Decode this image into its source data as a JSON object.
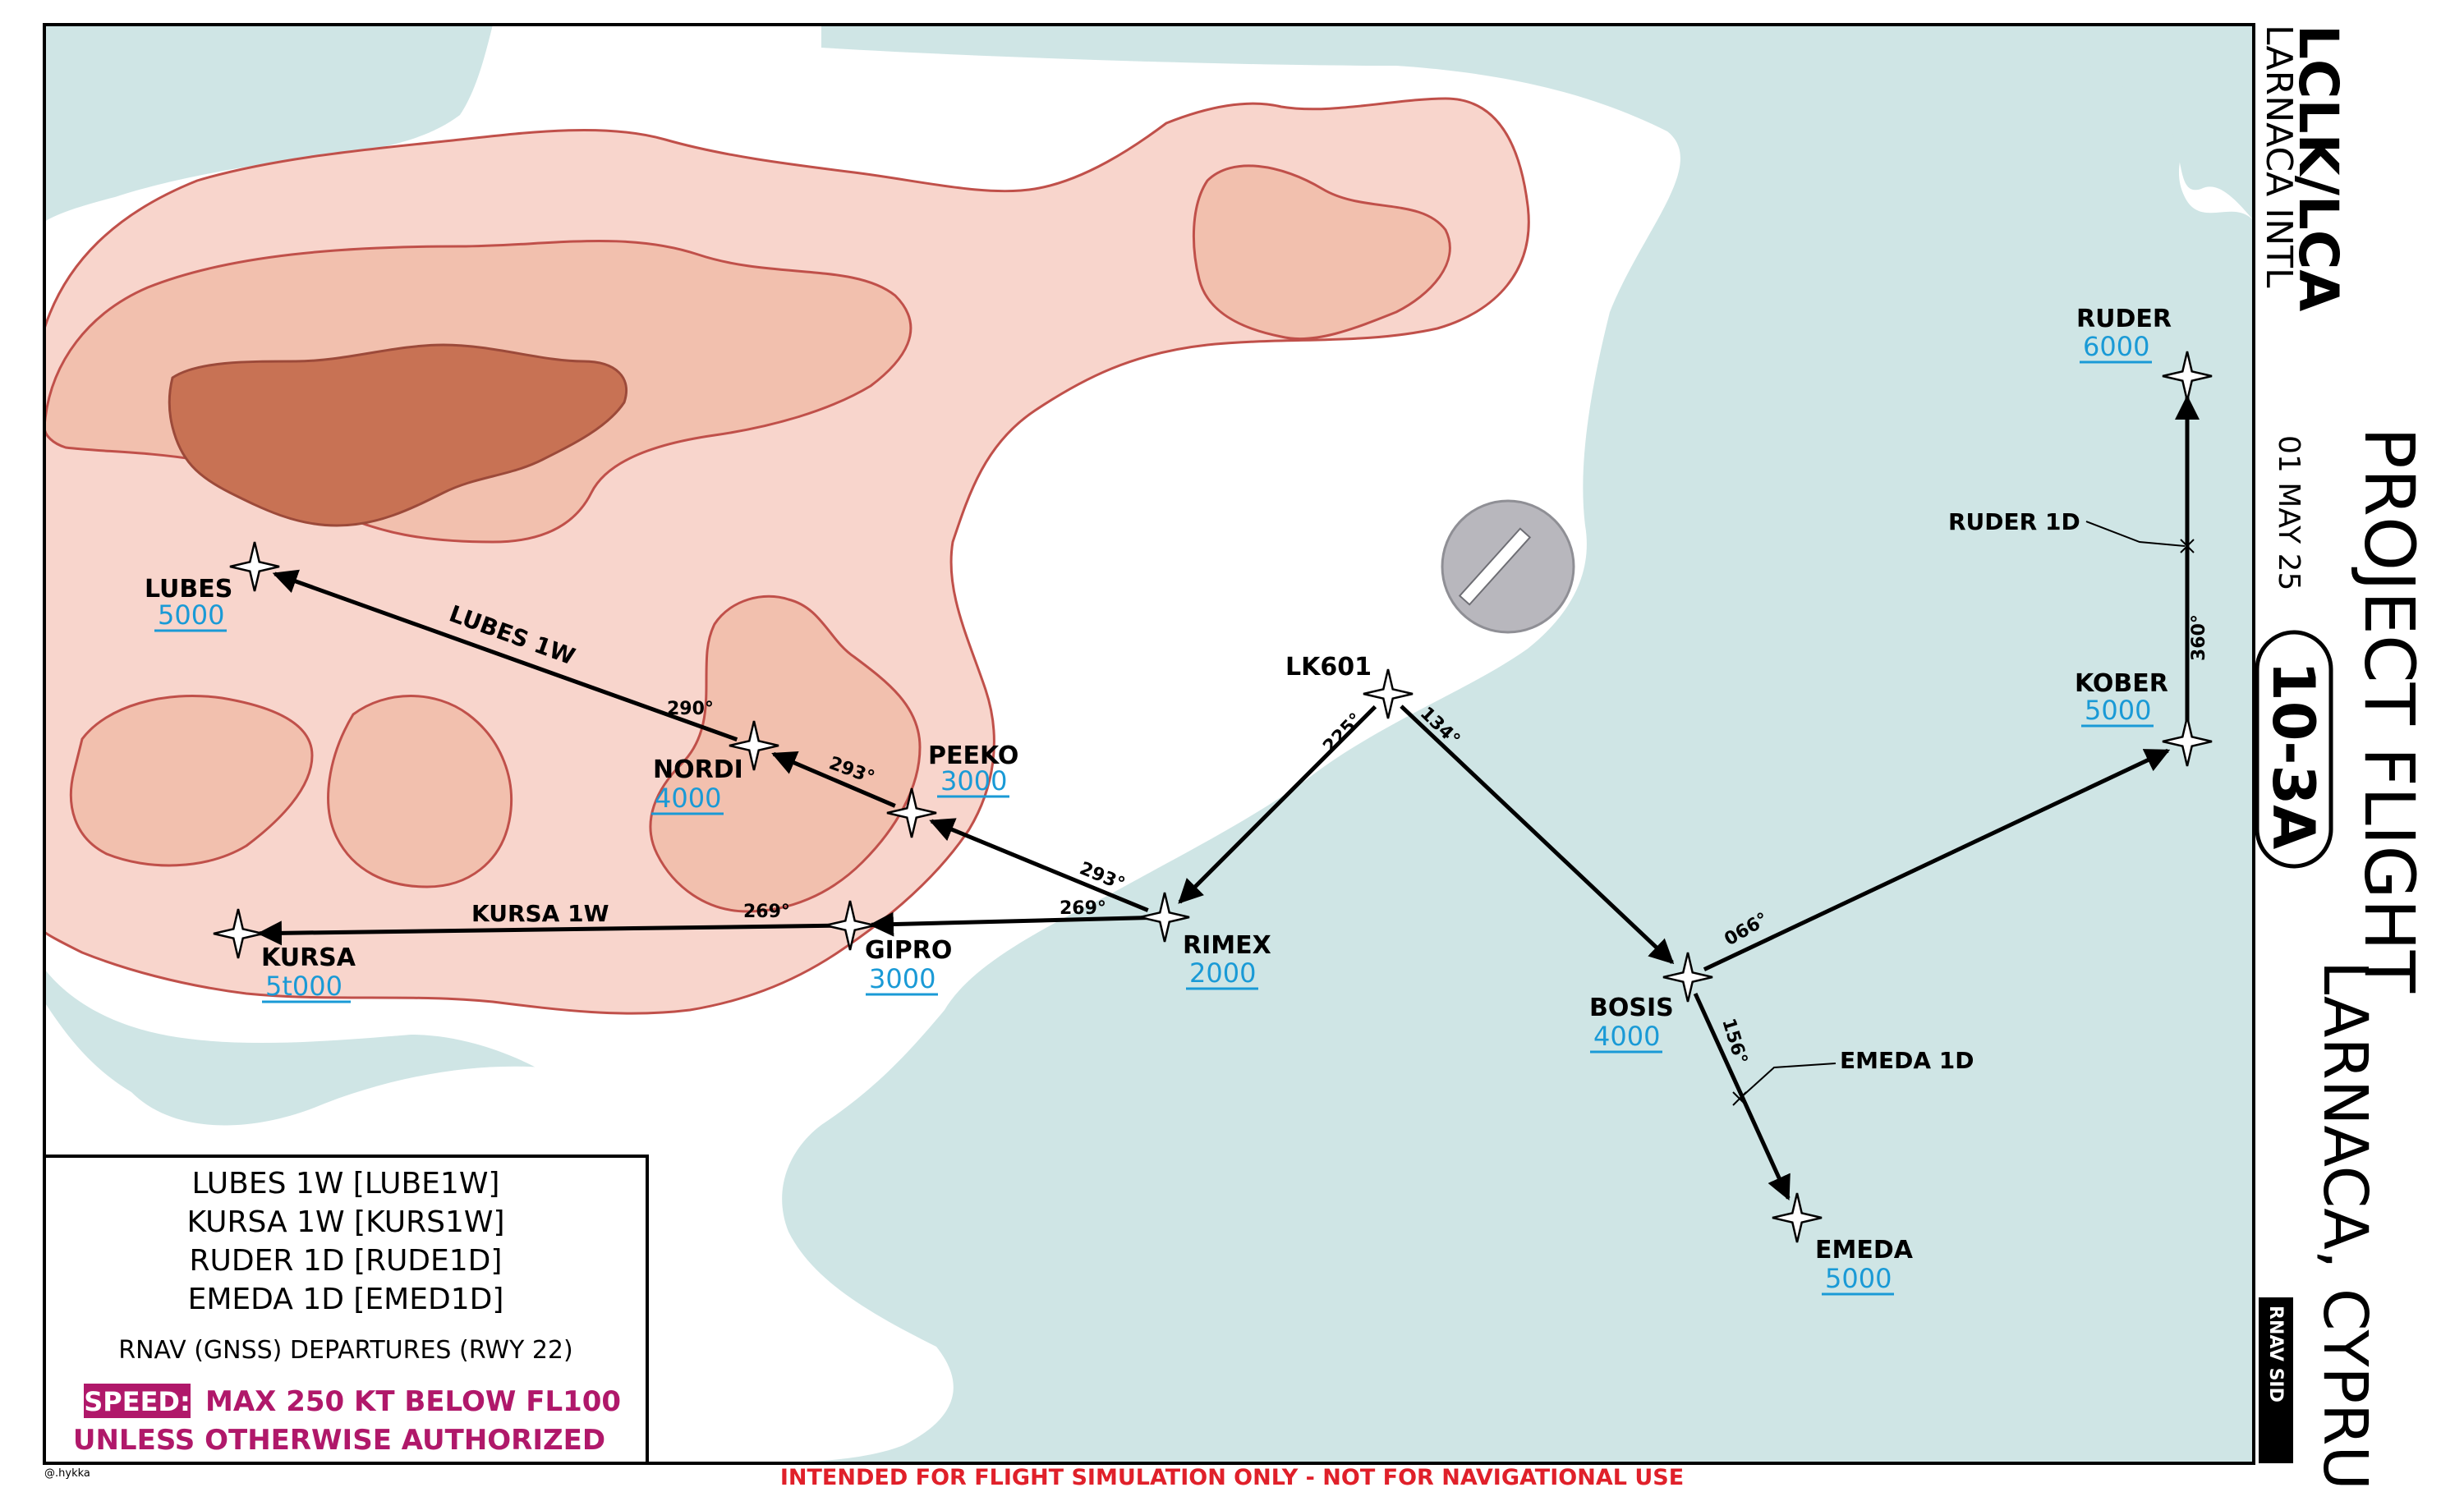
{
  "header": {
    "icao_iata": "LCLK/LCA",
    "airport_name": "LARNACA INTL",
    "title": "PROJECT FLIGHT",
    "city": "LARNACA, CYPRUS",
    "date": "01 MAY 25",
    "chart_number": "10-3A",
    "chart_type": "RNAV SID"
  },
  "legend": {
    "procedures": [
      "LUBES 1W [LUBE1W]",
      "KURSA 1W [KURS1W]",
      "RUDER 1D [RUDE1D]",
      "EMEDA 1D [EMED1D]"
    ],
    "subtitle": "RNAV (GNSS) DEPARTURES (RWY 22)",
    "speed_label": "SPEED:",
    "speed_line1": "MAX 250 KT BELOW FL100",
    "speed_line2": "UNLESS OTHERWISE AUTHORIZED"
  },
  "waypoints": [
    {
      "name": "LUBES",
      "alt": "5000"
    },
    {
      "name": "NORDI",
      "alt": "4000"
    },
    {
      "name": "PEEKO",
      "alt": "3000"
    },
    {
      "name": "KURSA",
      "alt": "5t000"
    },
    {
      "name": "GIPRO",
      "alt": "3000"
    },
    {
      "name": "RIMEX",
      "alt": "2000"
    },
    {
      "name": "LK601",
      "alt": ""
    },
    {
      "name": "BOSIS",
      "alt": "4000"
    },
    {
      "name": "KOBER",
      "alt": "5000"
    },
    {
      "name": "RUDER",
      "alt": "6000"
    },
    {
      "name": "EMEDA",
      "alt": "5000"
    }
  ],
  "route_names": {
    "lubes": "LUBES 1W",
    "kursa": "KURSA 1W",
    "ruder": "RUDER 1D",
    "emeda": "EMEDA 1D"
  },
  "courses": {
    "lk601_rimex": "225°",
    "lk601_bosis": "134°",
    "rimex_peeko": "293°",
    "rimex_gipro": "269°",
    "peeko_nordi": "293°",
    "nordi_lubes": "290°",
    "gipro_kursa": "269°",
    "bosis_kober": "066°",
    "bosis_emeda": "156°",
    "kober_ruder": "360°"
  },
  "footer": "INTENDED FOR FLIGHT SIMULATION ONLY - NOT FOR NAVIGATIONAL USE",
  "credit": "@.hykka",
  "colors": {
    "sea": "#cfe5e5",
    "land": "#ffffff",
    "terrain_1": "#f8d5cc",
    "terrain_2": "#f2c0ae",
    "terrain_3": "#c87254",
    "terrain_line": "#c0504a",
    "altitude": "#1a9ad6",
    "speed": "#b0186a",
    "footer": "#e0202a"
  }
}
